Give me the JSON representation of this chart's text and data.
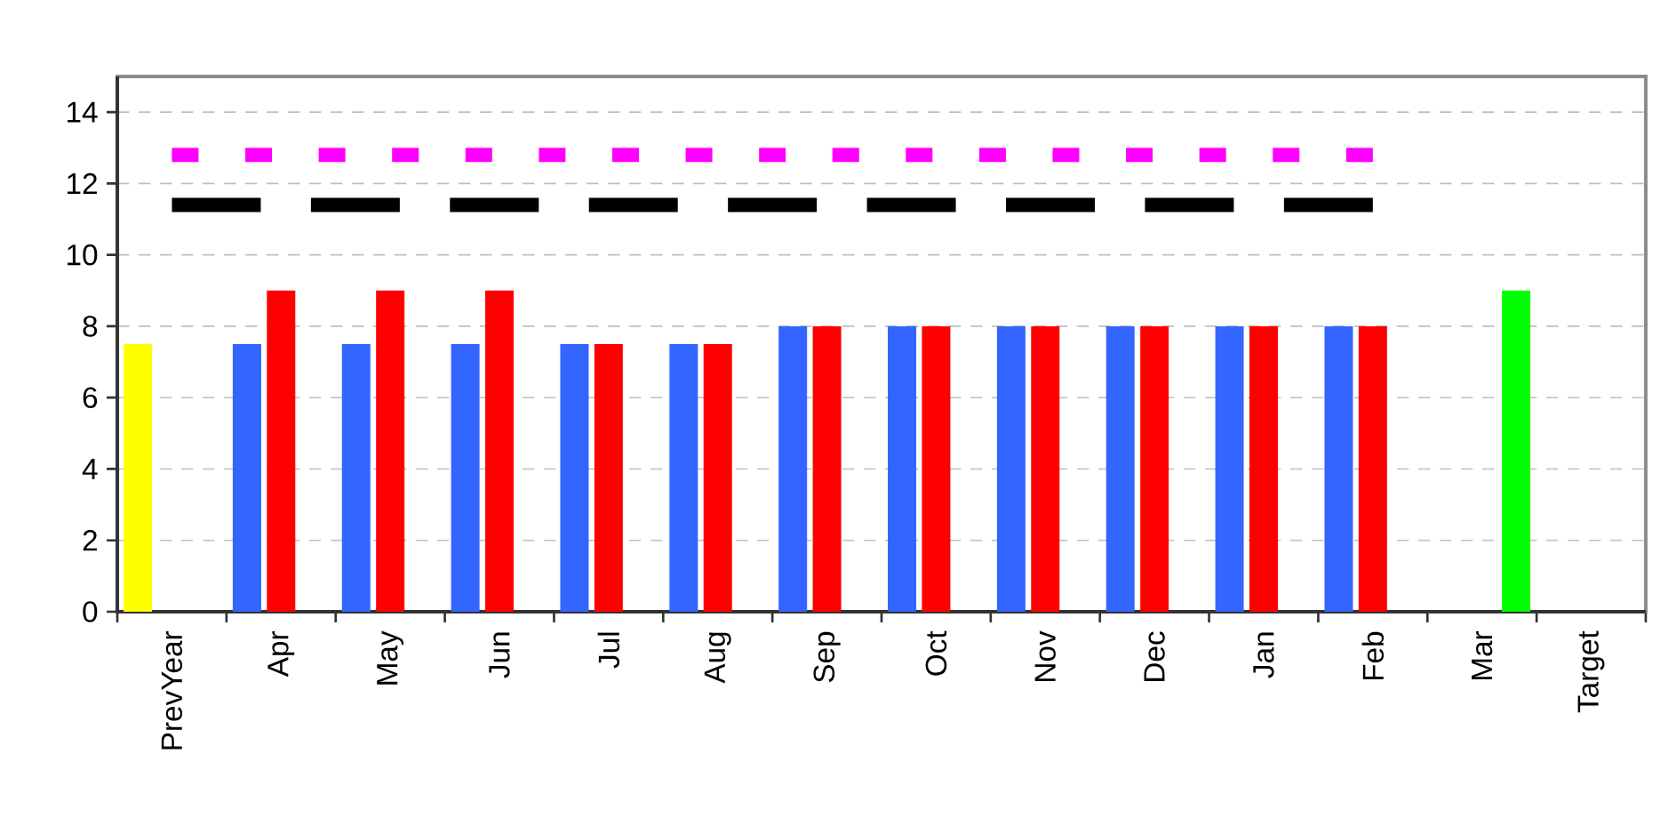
{
  "chart_data": {
    "type": "bar",
    "categories": [
      "PrevYear",
      "Apr",
      "May",
      "Jun",
      "Jul",
      "Aug",
      "Sep",
      "Oct",
      "Nov",
      "Dec",
      "Jan",
      "Feb",
      "Mar",
      "Target"
    ],
    "series": [
      {
        "colors": [
          "#ffff00",
          "#3366ff",
          "#3366ff",
          "#3366ff",
          "#3366ff",
          "#3366ff",
          "#3366ff",
          "#3366ff",
          "#3366ff",
          "#3366ff",
          "#3366ff",
          "#3366ff",
          null,
          null
        ],
        "values": [
          7.5,
          7.5,
          7.5,
          7.5,
          7.5,
          7.5,
          8,
          8,
          8,
          8,
          8,
          8,
          null,
          null
        ]
      },
      {
        "color": "#ff0000",
        "values": [
          null,
          9,
          9,
          9,
          7.5,
          7.5,
          8,
          8,
          8,
          8,
          8,
          8,
          null,
          null
        ]
      },
      {
        "color": "#00ff00",
        "values": [
          null,
          null,
          null,
          null,
          null,
          null,
          null,
          null,
          null,
          null,
          null,
          null,
          9,
          null
        ]
      },
      {
        "type": "line",
        "color": "#ff00ff",
        "line_style": "dotted",
        "values": [
          12.8,
          12.8,
          12.8,
          12.8,
          12.8,
          12.8,
          12.8,
          12.8,
          12.8,
          12.8,
          12.8,
          12.8,
          null,
          null
        ]
      },
      {
        "type": "line",
        "color": "#000000",
        "line_style": "dashed",
        "values": [
          11.4,
          11.4,
          11.4,
          11.4,
          11.4,
          11.4,
          11.4,
          11.4,
          11.4,
          11.4,
          11.4,
          11.4,
          null,
          null
        ]
      }
    ],
    "ylim": [
      0,
      15
    ],
    "yticks": [
      0,
      2,
      4,
      6,
      8,
      10,
      12,
      14
    ],
    "grid": "y"
  }
}
